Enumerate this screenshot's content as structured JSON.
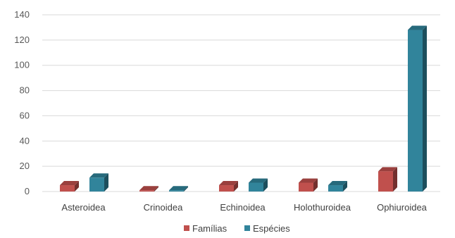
{
  "chart_data": {
    "type": "bar",
    "categories": [
      "Asteroidea",
      "Crinoidea",
      "Echinoidea",
      "Holothuroidea",
      "Ophiuroidea"
    ],
    "series": [
      {
        "name": "Famílias",
        "values": [
          5,
          1,
          5,
          7,
          16
        ],
        "color": "#c0504d"
      },
      {
        "name": "Espécies",
        "values": [
          11,
          1,
          7,
          5,
          128
        ],
        "color": "#31849b"
      }
    ],
    "title": "",
    "xlabel": "",
    "ylabel": "",
    "ylim": [
      0,
      140
    ],
    "yticks": [
      0,
      20,
      40,
      60,
      80,
      100,
      120,
      140
    ],
    "grid": true,
    "legend": "bottom-center",
    "style": "3d-column"
  }
}
